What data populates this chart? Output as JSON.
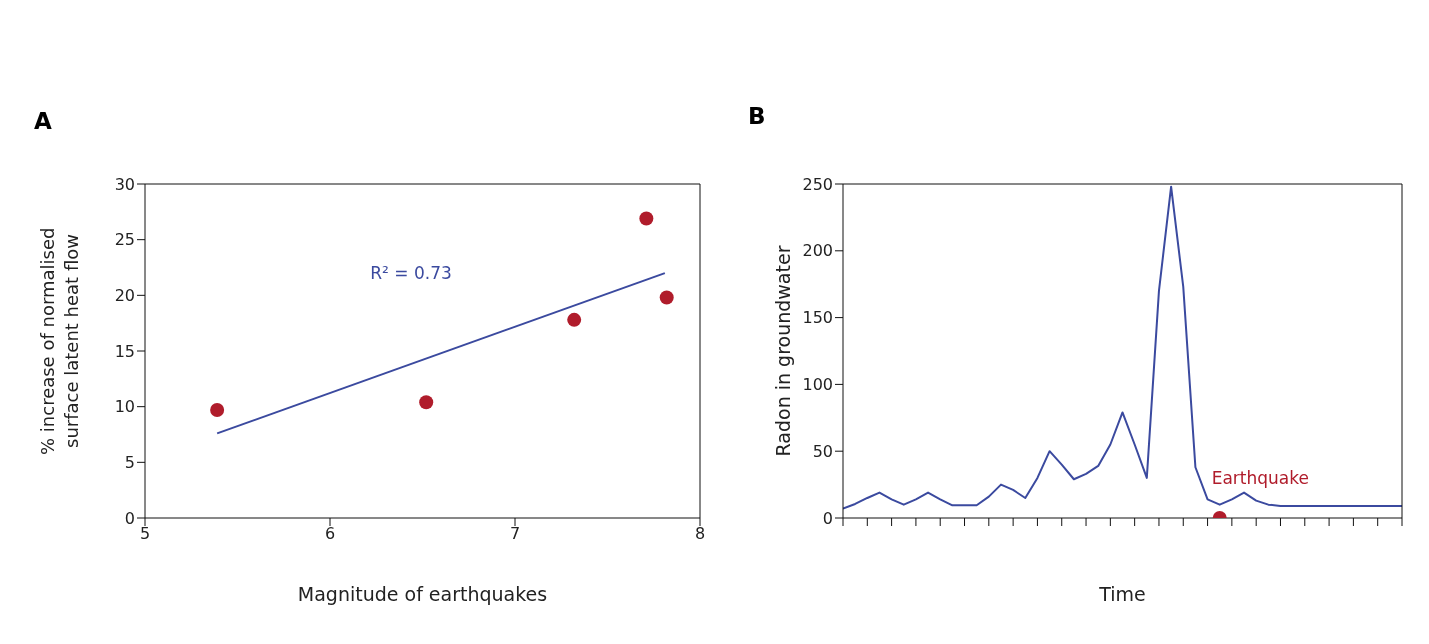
{
  "chart_data": [
    {
      "type": "scatter",
      "title": "A",
      "xlabel": "Magnitude of earthquakes",
      "ylabel": "% increase of normalised surface latent heat flow",
      "xlim": [
        5,
        8
      ],
      "xticks": [
        5,
        6,
        7,
        8
      ],
      "ylim": [
        0,
        30
      ],
      "yticks": [
        0,
        5,
        10,
        15,
        20,
        25,
        30
      ],
      "series": [
        {
          "color": "#b01c2b",
          "marker": "circle",
          "x": [
            5.39,
            6.52,
            7.32,
            7.71,
            7.82
          ],
          "values": [
            9.7,
            10.4,
            17.8,
            26.9,
            19.8
          ]
        },
        {
          "type": "line",
          "color": "#3b4a9f",
          "marker": "none",
          "x": [
            5.39,
            7.81
          ],
          "values": [
            7.6,
            22.0
          ]
        }
      ],
      "annotations": [
        "R² = 0.73"
      ]
    },
    {
      "type": "line",
      "title": "B",
      "xlabel": "Time",
      "ylabel": "Radon in groundwater",
      "categories": [
        null,
        null,
        null,
        null,
        null,
        null,
        null,
        null,
        null,
        null,
        null,
        null,
        null,
        null,
        null,
        null,
        null,
        null,
        null,
        null,
        null,
        null,
        null,
        null,
        null,
        null,
        null,
        null,
        null,
        null,
        null,
        null,
        null,
        null,
        null,
        null,
        null,
        null,
        null,
        null,
        null,
        null,
        null,
        null,
        null,
        null,
        null
      ],
      "ylim": [
        0,
        250
      ],
      "yticks": [
        0,
        50,
        100,
        150,
        200,
        250
      ],
      "series": [
        {
          "color": "#3b4a9f",
          "marker": "none",
          "values": [
            7,
            10.5,
            15,
            19,
            14,
            10,
            14,
            19,
            14,
            9.5,
            9.5,
            9.5,
            16,
            25,
            21,
            15,
            30,
            50,
            40,
            29,
            33,
            39,
            55,
            79,
            55,
            30,
            170,
            248,
            173,
            38,
            14,
            10,
            14,
            19,
            13,
            10,
            9,
            9,
            9,
            9,
            9,
            9,
            9,
            9,
            9,
            9,
            9
          ]
        },
        {
          "type": "scatter",
          "color": "#b01c2b",
          "marker": "circle",
          "values": [
            null,
            null,
            null,
            null,
            null,
            null,
            null,
            null,
            null,
            null,
            null,
            null,
            null,
            null,
            null,
            null,
            null,
            null,
            null,
            null,
            null,
            null,
            null,
            null,
            null,
            null,
            null,
            null,
            null,
            null,
            null,
            0,
            null,
            null,
            null,
            null,
            null,
            null,
            null,
            null,
            null,
            null,
            null,
            null,
            null,
            null,
            null
          ]
        }
      ],
      "annotations": [
        "Earthquake"
      ]
    }
  ]
}
